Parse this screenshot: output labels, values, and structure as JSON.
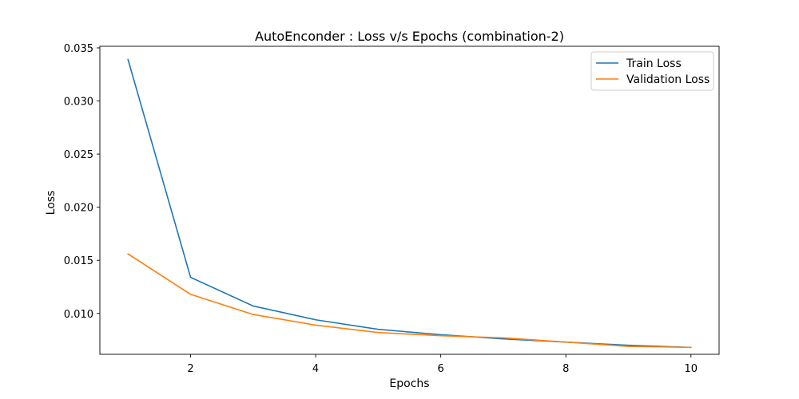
{
  "chart_data": {
    "type": "line",
    "title": "AutoEnconder : Loss v/s Epochs (combination-2)",
    "xlabel": "Epochs",
    "ylabel": "Loss",
    "x": [
      1,
      2,
      3,
      4,
      5,
      6,
      7,
      8,
      9,
      10
    ],
    "xlim": [
      0.55,
      10.45
    ],
    "ylim": [
      0.00615,
      0.03515
    ],
    "xticks": [
      2,
      4,
      6,
      8,
      10
    ],
    "xtick_labels": [
      "2",
      "4",
      "6",
      "8",
      "10"
    ],
    "yticks": [
      0.01,
      0.015,
      0.02,
      0.025,
      0.03,
      0.035
    ],
    "ytick_labels": [
      "0.010",
      "0.015",
      "0.020",
      "0.025",
      "0.030",
      "0.035"
    ],
    "grid": false,
    "legend": "top-right",
    "series": [
      {
        "name": "Train Loss",
        "color": "#1f77b4",
        "values": [
          0.0339,
          0.0134,
          0.0107,
          0.0094,
          0.0085,
          0.008,
          0.0076,
          0.0073,
          0.007,
          0.0068
        ]
      },
      {
        "name": "Validation Loss",
        "color": "#ff7f0e",
        "values": [
          0.0156,
          0.0118,
          0.0099,
          0.0089,
          0.0082,
          0.0079,
          0.0077,
          0.0073,
          0.0069,
          0.0068
        ]
      }
    ]
  }
}
